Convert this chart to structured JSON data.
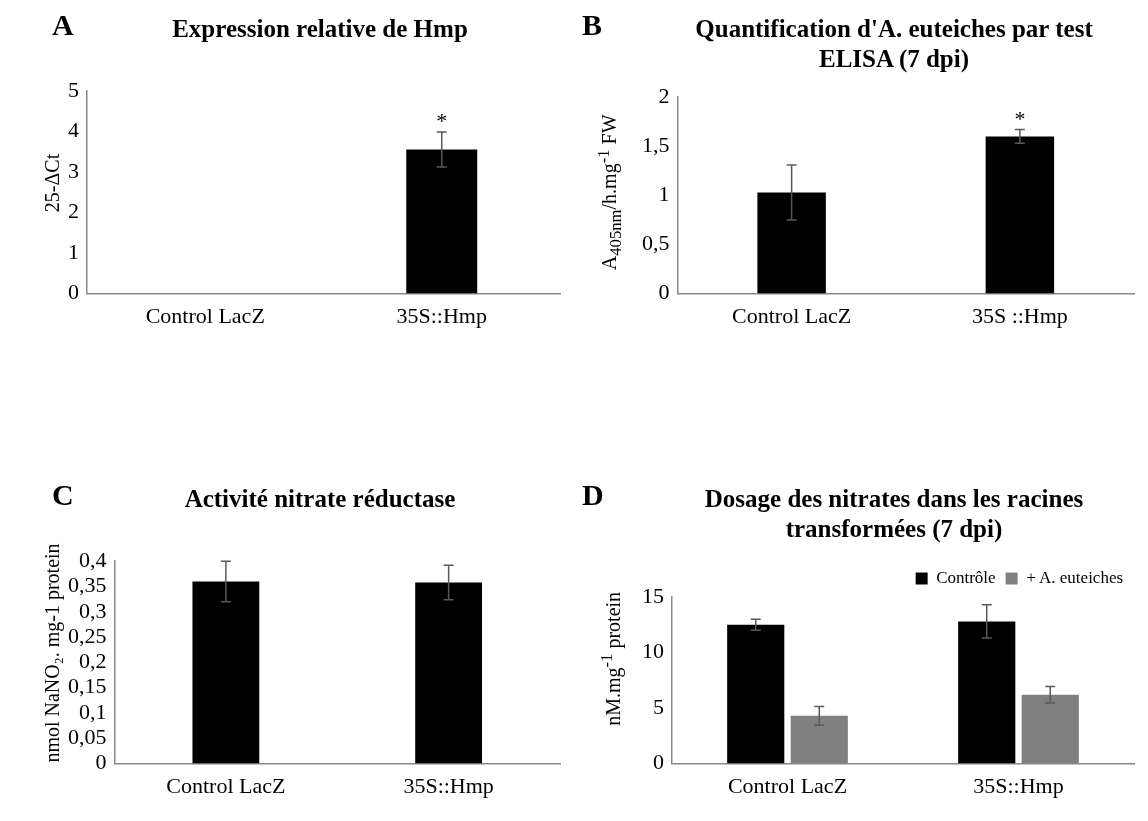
{
  "chart_data": [
    {
      "type": "bar",
      "title": "Expression relative de Hmp",
      "ylabel": "25-ΔCt",
      "categories": [
        "Control LacZ",
        "35S::Hmp"
      ],
      "values": [
        null,
        3.56
      ],
      "errors": [
        null,
        0.43
      ],
      "color": "#000000",
      "ylim": [
        0,
        5
      ],
      "yticks": [
        0,
        1,
        2,
        3,
        4,
        5
      ],
      "grid": false,
      "legend": false,
      "annotations": [
        "A",
        {
          "text": "*",
          "x": "35S::Hmp",
          "y": 4.0
        }
      ]
    },
    {
      "type": "bar",
      "title": "Quantification d'A. euteiches par test ELISA  (7 dpi)",
      "ylabel": "A$_{405nm}$/h.mg$^{-1}$ FW",
      "categories": [
        "Control LacZ",
        "35S ::Hmp"
      ],
      "values": [
        1.03,
        1.6
      ],
      "errors": [
        0.28,
        0.07
      ],
      "color": "#000000",
      "ylim": [
        0,
        2
      ],
      "yticks": [
        0,
        {
          "value": 0.5,
          "label": "0,5"
        },
        1,
        {
          "value": 1.5,
          "label": "1,5"
        },
        2
      ],
      "grid": false,
      "legend": false,
      "annotations": [
        "B",
        {
          "text": "*",
          "x": "35S ::Hmp",
          "y": 1.67
        }
      ]
    },
    {
      "type": "bar",
      "title": "Activité nitrate réductase",
      "ylabel": "nmol NaNO₂. mg-1 protein",
      "categories": [
        "Control LacZ",
        "35S::Hmp"
      ],
      "values": [
        0.36,
        0.358
      ],
      "errors": [
        0.04,
        0.034
      ],
      "color": "#000000",
      "ylim": [
        0,
        0.4
      ],
      "yticks": [
        0,
        {
          "value": 0.05,
          "label": "0,05"
        },
        {
          "value": 0.1,
          "label": "0,1"
        },
        {
          "value": 0.15,
          "label": "0,15"
        },
        {
          "value": 0.2,
          "label": "0,2"
        },
        {
          "value": 0.25,
          "label": "0,25"
        },
        {
          "value": 0.3,
          "label": "0,3"
        },
        {
          "value": 0.35,
          "label": "0,35"
        },
        {
          "value": 0.4,
          "label": "0,4"
        }
      ],
      "grid": false,
      "legend": false,
      "annotations": [
        "C"
      ]
    },
    {
      "type": "bar",
      "title": "Dosage des nitrates dans les racines transformées (7 dpi)",
      "ylabel": "nM.mg$^{-1}$ protein",
      "categories": [
        "Control LacZ",
        "35S::Hmp"
      ],
      "series": [
        {
          "name": "Contrôle",
          "color": "#000000",
          "values": [
            12.5,
            12.8
          ],
          "errors": [
            0.5,
            1.5
          ]
        },
        {
          "name": "+ A. euteiches",
          "color": "#808080",
          "values": [
            4.3,
            6.2
          ],
          "errors": [
            0.85,
            0.75
          ]
        }
      ],
      "ylim": [
        0,
        15
      ],
      "yticks": [
        0,
        5,
        10,
        15
      ],
      "grid": false,
      "legend": "top right",
      "annotations": [
        "D"
      ]
    }
  ]
}
